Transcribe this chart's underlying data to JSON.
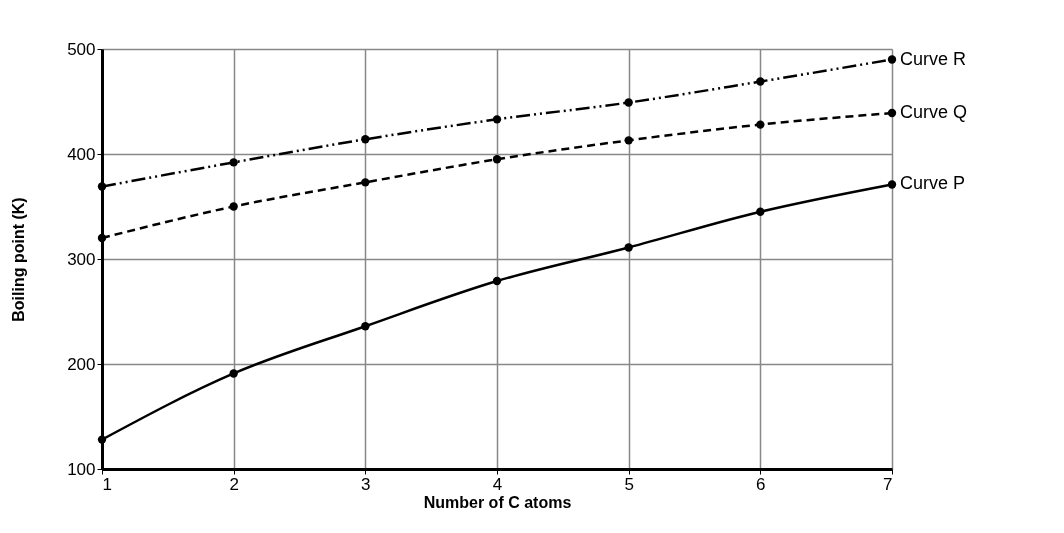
{
  "chart_data": {
    "type": "line",
    "xlabel": "Number of C atoms",
    "ylabel": "Boiling point (K)",
    "x": [
      1,
      2,
      3,
      4,
      5,
      6,
      7
    ],
    "series": [
      {
        "name": "Curve P",
        "color": "#000000",
        "line_style": "solid",
        "values": [
          128,
          191,
          236,
          279,
          311,
          345,
          371
        ]
      },
      {
        "name": "Curve Q",
        "color": "#000000",
        "line_style": "dashed",
        "values": [
          320,
          350,
          373,
          395,
          413,
          428,
          439
        ]
      },
      {
        "name": "Curve R",
        "color": "#000000",
        "line_style": "dotted",
        "values": [
          369,
          392,
          414,
          433,
          449,
          469,
          490
        ]
      }
    ],
    "xlim": [
      1,
      7
    ],
    "xticks": [
      1,
      2,
      3,
      4,
      5,
      6,
      7
    ],
    "ylim": [
      100,
      500
    ],
    "yticks": [
      100,
      200,
      300,
      400,
      500
    ],
    "grid": true,
    "marker": "circle",
    "legend": false
  }
}
